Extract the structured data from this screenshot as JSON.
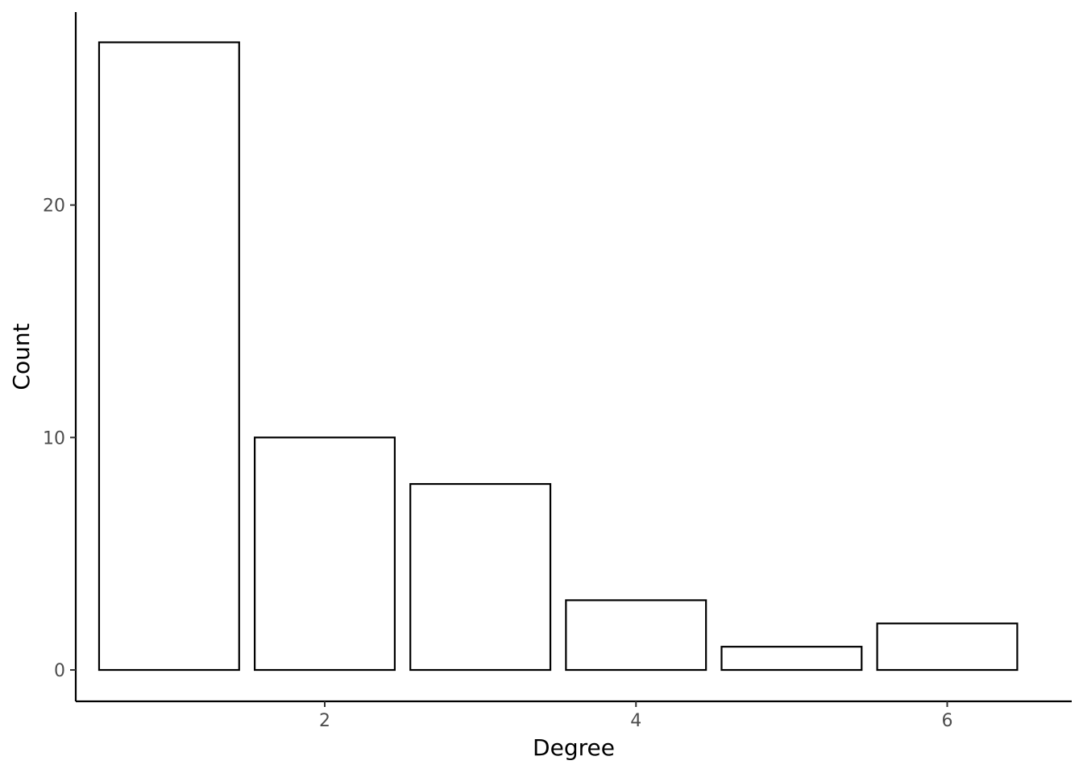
{
  "chart_data": {
    "type": "bar",
    "title": "",
    "xlabel": "Degree",
    "ylabel": "Count",
    "x": [
      1,
      2,
      3,
      4,
      5,
      6
    ],
    "values": [
      27,
      10,
      8,
      3,
      1,
      2
    ],
    "xticks": [
      2,
      4,
      6
    ],
    "yticks": [
      0,
      10,
      20
    ],
    "xlim": [
      0.4,
      6.8
    ],
    "ylim": [
      -1.35,
      28.3
    ],
    "grid": false,
    "bar_fill": "#ffffff",
    "bar_outline": "#000000"
  }
}
